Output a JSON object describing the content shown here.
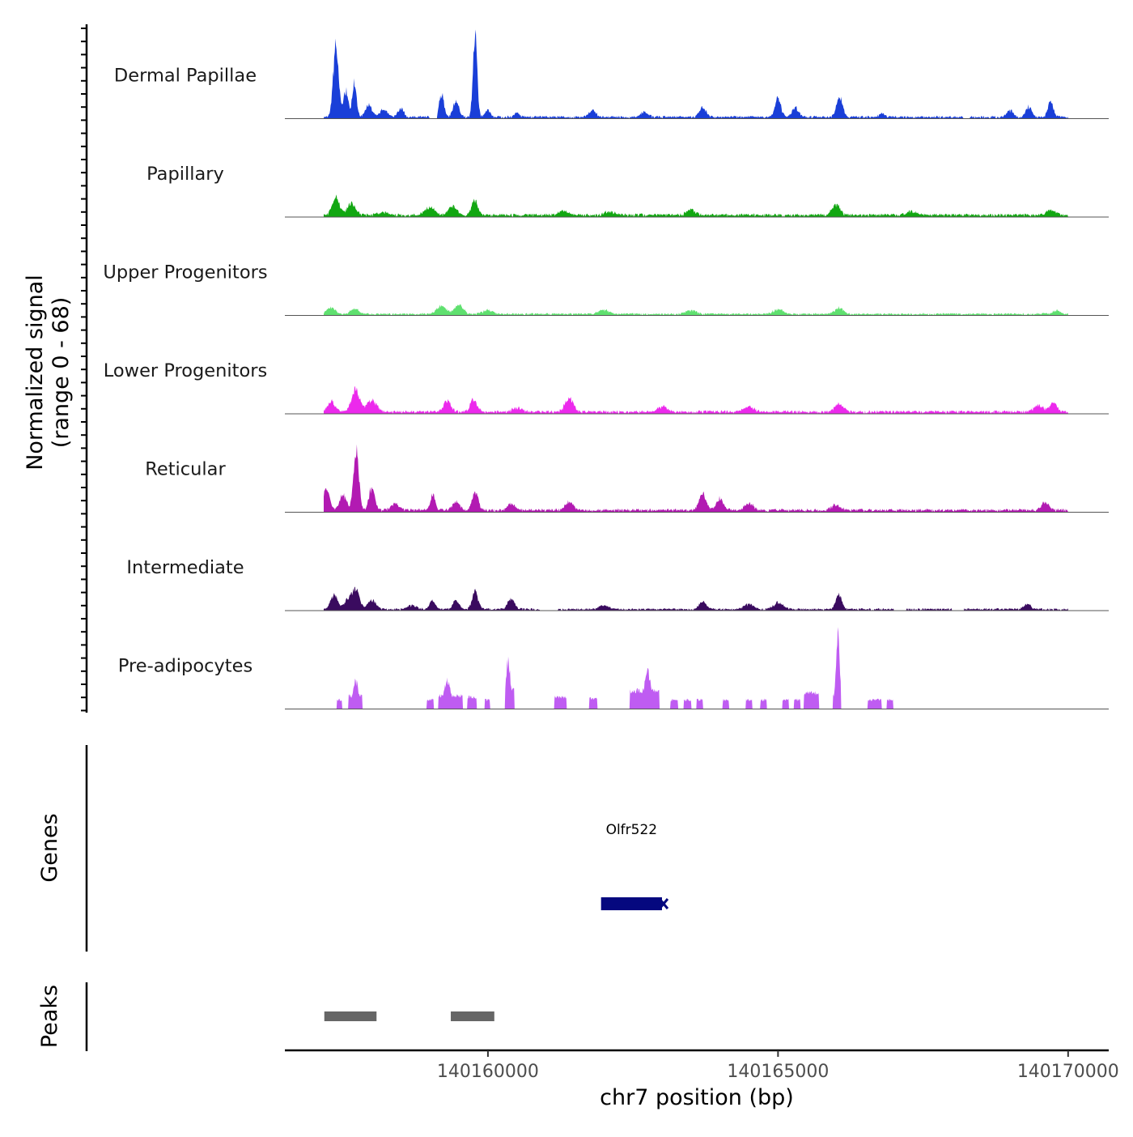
{
  "chart_data": {
    "type": "area",
    "title": "",
    "xlabel": "chr7 position (bp)",
    "ylabel_line1": "Normalized signal",
    "ylabel_line2": "(range 0 - 68)",
    "y_range": [
      0,
      68
    ],
    "x_range": [
      140156500,
      140170700
    ],
    "x_ticks": [
      {
        "value": 140160000,
        "label": "140160000"
      },
      {
        "value": 140165000,
        "label": "140165000"
      },
      {
        "value": 140170000,
        "label": "140170000"
      }
    ],
    "signal_start": 140157170,
    "signal_end": 140170000,
    "tracks": [
      {
        "name": "Dermal Papillae",
        "color": "#1a3fd8",
        "peaks": [
          [
            140157380,
            58,
            45
          ],
          [
            140157550,
            22,
            40
          ],
          [
            140157700,
            28,
            35
          ],
          [
            140157950,
            9,
            60
          ],
          [
            140158200,
            6,
            60
          ],
          [
            140158500,
            7,
            50
          ],
          [
            140159200,
            18,
            40
          ],
          [
            140159450,
            12,
            50
          ],
          [
            140159780,
            68,
            35
          ],
          [
            140160000,
            6,
            40
          ],
          [
            140160500,
            3,
            40
          ],
          [
            140161800,
            5,
            60
          ],
          [
            140162700,
            4,
            60
          ],
          [
            140163700,
            7,
            60
          ],
          [
            140165000,
            14,
            50
          ],
          [
            140165300,
            7,
            60
          ],
          [
            140166060,
            16,
            50
          ],
          [
            140166800,
            3,
            50
          ],
          [
            140169000,
            5,
            50
          ],
          [
            140169320,
            8,
            50
          ],
          [
            140169700,
            12,
            45
          ]
        ],
        "base": 1.8,
        "gaps": [
          [
            140159000,
            140159120
          ],
          [
            140168200,
            140168300
          ]
        ]
      },
      {
        "name": "Papillary",
        "color": "#12a712",
        "peaks": [
          [
            140157380,
            14,
            60
          ],
          [
            140157650,
            9,
            70
          ],
          [
            140158200,
            2,
            80
          ],
          [
            140159000,
            6,
            80
          ],
          [
            140159400,
            7,
            70
          ],
          [
            140159770,
            12,
            50
          ],
          [
            140161300,
            3,
            80
          ],
          [
            140162100,
            3,
            80
          ],
          [
            140163500,
            4,
            80
          ],
          [
            140166000,
            8,
            70
          ],
          [
            140167300,
            3,
            80
          ],
          [
            140169700,
            4,
            70
          ]
        ],
        "base": 2.2,
        "gaps": []
      },
      {
        "name": "Upper Progenitors",
        "color": "#5fe06f",
        "peaks": [
          [
            140157300,
            5,
            70
          ],
          [
            140157700,
            4,
            70
          ],
          [
            140159200,
            6,
            90
          ],
          [
            140159500,
            7,
            70
          ],
          [
            140160000,
            3,
            80
          ],
          [
            140162000,
            3,
            90
          ],
          [
            140163500,
            3,
            90
          ],
          [
            140165000,
            4,
            80
          ],
          [
            140166050,
            5,
            70
          ],
          [
            140169800,
            3,
            60
          ]
        ],
        "base": 1.5,
        "gaps": []
      },
      {
        "name": "Lower Progenitors",
        "color": "#ec29ec",
        "peaks": [
          [
            140157300,
            8,
            60
          ],
          [
            140157720,
            17,
            70
          ],
          [
            140158000,
            9,
            80
          ],
          [
            140159300,
            9,
            60
          ],
          [
            140159750,
            9,
            60
          ],
          [
            140160500,
            3,
            80
          ],
          [
            140161400,
            11,
            70
          ],
          [
            140163000,
            4,
            80
          ],
          [
            140164500,
            4,
            80
          ],
          [
            140166050,
            6,
            70
          ],
          [
            140169500,
            5,
            80
          ],
          [
            140169750,
            7,
            60
          ]
        ],
        "base": 2.2,
        "gaps": []
      },
      {
        "name": "Reticular",
        "color": "#b21ab2",
        "peaks": [
          [
            140157220,
            18,
            50
          ],
          [
            140157500,
            12,
            60
          ],
          [
            140157730,
            46,
            45
          ],
          [
            140158000,
            18,
            50
          ],
          [
            140158400,
            5,
            70
          ],
          [
            140159050,
            12,
            40
          ],
          [
            140159450,
            6,
            60
          ],
          [
            140159780,
            15,
            50
          ],
          [
            140160400,
            5,
            60
          ],
          [
            140161400,
            7,
            70
          ],
          [
            140163700,
            13,
            60
          ],
          [
            140164000,
            9,
            60
          ],
          [
            140164500,
            5,
            80
          ],
          [
            140166000,
            4,
            80
          ],
          [
            140169600,
            6,
            60
          ]
        ],
        "base": 2.2,
        "gaps": []
      },
      {
        "name": "Intermediate",
        "color": "#3a0b5f",
        "peaks": [
          [
            140157350,
            11,
            60
          ],
          [
            140157600,
            8,
            70
          ],
          [
            140157730,
            14,
            60
          ],
          [
            140158000,
            7,
            70
          ],
          [
            140158700,
            3,
            80
          ],
          [
            140159050,
            7,
            50
          ],
          [
            140159450,
            7,
            50
          ],
          [
            140159780,
            14,
            50
          ],
          [
            140160400,
            8,
            60
          ],
          [
            140162000,
            3,
            80
          ],
          [
            140163700,
            6,
            60
          ],
          [
            140164500,
            4,
            80
          ],
          [
            140165000,
            5,
            80
          ],
          [
            140166050,
            11,
            50
          ],
          [
            140169300,
            4,
            60
          ]
        ],
        "base": 1.5,
        "gaps": [
          [
            140160900,
            140161200
          ],
          [
            140167000,
            140167200
          ],
          [
            140168000,
            140168200
          ]
        ]
      },
      {
        "name": "Pre-adipocytes",
        "color": "#bf5cf2",
        "peaks": [
          [
            140157720,
            22,
            50
          ],
          [
            140159300,
            22,
            55
          ],
          [
            140160350,
            38,
            40
          ],
          [
            140162750,
            28,
            60
          ],
          [
            140166030,
            56,
            35
          ],
          [
            140165500,
            12,
            50
          ]
        ],
        "blocks": [
          [
            140157400,
            140157480,
            7
          ],
          [
            140157600,
            140157830,
            10
          ],
          [
            140158950,
            140159060,
            7
          ],
          [
            140159150,
            140159560,
            10
          ],
          [
            140159650,
            140159800,
            9
          ],
          [
            140159950,
            140160030,
            7
          ],
          [
            140160300,
            140160450,
            15
          ],
          [
            140161150,
            140161350,
            9
          ],
          [
            140161750,
            140161880,
            8
          ],
          [
            140162450,
            140162950,
            14
          ],
          [
            140163150,
            140163270,
            7
          ],
          [
            140163380,
            140163500,
            7
          ],
          [
            140163600,
            140163700,
            7
          ],
          [
            140164050,
            140164150,
            7
          ],
          [
            140164450,
            140164550,
            7
          ],
          [
            140164700,
            140164800,
            7
          ],
          [
            140165080,
            140165180,
            7
          ],
          [
            140165280,
            140165380,
            7
          ],
          [
            140165450,
            140165700,
            12
          ],
          [
            140165950,
            140166080,
            10
          ],
          [
            140166550,
            140166780,
            7
          ],
          [
            140166880,
            140166980,
            7
          ]
        ],
        "base": 0,
        "gaps": []
      }
    ],
    "genes_label": "Genes",
    "genes": [
      {
        "name": "Olfr522",
        "start": 140161950,
        "end": 140163000,
        "strand": "-",
        "color": "#05087f"
      }
    ],
    "peaks_label": "Peaks",
    "peak_regions": [
      [
        140157180,
        140158080
      ],
      [
        140159360,
        140160110
      ]
    ],
    "peak_color": "#666666"
  }
}
